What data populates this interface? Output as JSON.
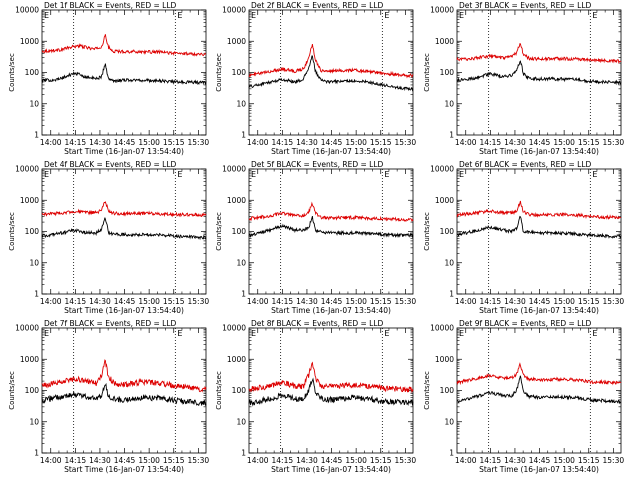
{
  "chart_data": [
    {
      "type": "line",
      "title": "Det 1f BLACK = Events, RED = LLD",
      "xlabel": "Start Time (16-Jan-07 13:54:40)",
      "ylabel": "Counts/sec",
      "x_unit": "minutes from 13:54:40",
      "xlim": [
        0,
        100
      ],
      "ylim": [
        1,
        10000
      ],
      "yscale": "log",
      "xtick_labels": [
        "14:00",
        "14:15",
        "14:30",
        "14:45",
        "15:00",
        "15:15",
        "15:30"
      ],
      "ytick_labels": [
        "1",
        "10",
        "100",
        "1000",
        "10000"
      ],
      "vlines_minutes": [
        19.3,
        81.3
      ],
      "markers": [
        "E",
        "E"
      ],
      "series": [
        {
          "color": "#dd0000",
          "x": [
            0,
            10,
            22,
            32,
            36.3,
            38.6,
            40.5,
            43,
            50,
            62,
            72,
            82,
            96
          ],
          "y": [
            480,
            520,
            720,
            560,
            650,
            1550,
            640,
            480,
            470,
            460,
            450,
            410,
            390
          ]
        },
        {
          "color": "#000000",
          "x": [
            0,
            10,
            20,
            27,
            33,
            36.3,
            38.6,
            40.5,
            44,
            50,
            62,
            72,
            82,
            96
          ],
          "y": [
            55,
            60,
            95,
            72,
            62,
            75,
            190,
            60,
            55,
            58,
            56,
            54,
            50,
            48
          ]
        }
      ]
    },
    {
      "type": "line",
      "title": "Det 2f BLACK = Events, RED = LLD",
      "xlabel": "Start Time (16-Jan-07 13:54:40)",
      "ylabel": "Counts/sec",
      "x_unit": "minutes from 13:54:40",
      "xlim": [
        0,
        100
      ],
      "ylim": [
        1,
        10000
      ],
      "yscale": "log",
      "xtick_labels": [
        "14:00",
        "14:15",
        "14:30",
        "14:45",
        "15:00",
        "15:15",
        "15:30"
      ],
      "ytick_labels": [
        "1",
        "10",
        "100",
        "1000",
        "10000"
      ],
      "vlines_minutes": [
        19.3,
        81.3
      ],
      "markers": [
        "E",
        "E"
      ],
      "series": [
        {
          "color": "#dd0000",
          "x": [
            0,
            10,
            20,
            28,
            33,
            36.3,
            38.6,
            40.5,
            44,
            50,
            62,
            72,
            82,
            96
          ],
          "y": [
            80,
            100,
            130,
            110,
            130,
            280,
            800,
            260,
            115,
            110,
            120,
            110,
            95,
            80
          ]
        },
        {
          "color": "#000000",
          "x": [
            0,
            10,
            20,
            28,
            33,
            36.3,
            38.6,
            40.5,
            44,
            50,
            62,
            72,
            82,
            96
          ],
          "y": [
            35,
            45,
            60,
            50,
            60,
            130,
            350,
            110,
            55,
            50,
            55,
            50,
            40,
            30
          ]
        }
      ]
    },
    {
      "type": "line",
      "title": "Det 3f BLACK = Events, RED = LLD",
      "xlabel": "Start Time (16-Jan-07 13:54:40)",
      "ylabel": "Counts/sec",
      "x_unit": "minutes from 13:54:40",
      "xlim": [
        0,
        100
      ],
      "ylim": [
        1,
        10000
      ],
      "yscale": "log",
      "xtick_labels": [
        "14:00",
        "14:15",
        "14:30",
        "14:45",
        "15:00",
        "15:15",
        "15:30"
      ],
      "ytick_labels": [
        "1",
        "10",
        "100",
        "1000",
        "10000"
      ],
      "vlines_minutes": [
        19.3,
        81.3
      ],
      "markers": [
        "E",
        "E"
      ],
      "series": [
        {
          "color": "#dd0000",
          "x": [
            0,
            10,
            20,
            28,
            33,
            36.3,
            38.6,
            40.5,
            44,
            50,
            62,
            72,
            82,
            96
          ],
          "y": [
            260,
            280,
            340,
            290,
            310,
            430,
            850,
            380,
            280,
            270,
            280,
            270,
            250,
            230
          ]
        },
        {
          "color": "#000000",
          "x": [
            0,
            10,
            20,
            28,
            33,
            36.3,
            38.6,
            40.5,
            44,
            50,
            62,
            72,
            82,
            96
          ],
          "y": [
            55,
            65,
            90,
            75,
            80,
            110,
            250,
            90,
            65,
            62,
            62,
            60,
            52,
            48
          ]
        }
      ]
    },
    {
      "type": "line",
      "title": "Det 4f BLACK = Events, RED = LLD",
      "xlabel": "Start Time (16-Jan-07 13:54:40)",
      "ylabel": "Counts/sec",
      "x_unit": "minutes from 13:54:40",
      "xlim": [
        0,
        100
      ],
      "ylim": [
        1,
        10000
      ],
      "yscale": "log",
      "xtick_labels": [
        "14:00",
        "14:15",
        "14:30",
        "14:45",
        "15:00",
        "15:15",
        "15:30"
      ],
      "ytick_labels": [
        "1",
        "10",
        "100",
        "1000",
        "10000"
      ],
      "vlines_minutes": [
        19.3,
        81.3
      ],
      "markers": [
        "E",
        "E"
      ],
      "series": [
        {
          "color": "#dd0000",
          "x": [
            0,
            10,
            20,
            28,
            33,
            36.3,
            38.6,
            40.5,
            44,
            50,
            62,
            72,
            82,
            96
          ],
          "y": [
            360,
            380,
            440,
            400,
            400,
            480,
            950,
            450,
            380,
            370,
            380,
            370,
            350,
            340
          ]
        },
        {
          "color": "#000000",
          "x": [
            0,
            10,
            20,
            28,
            33,
            36.3,
            38.6,
            40.5,
            44,
            50,
            62,
            72,
            82,
            96
          ],
          "y": [
            70,
            85,
            110,
            90,
            90,
            115,
            280,
            95,
            80,
            80,
            80,
            78,
            70,
            65
          ]
        }
      ]
    },
    {
      "type": "line",
      "title": "Det 5f BLACK = Events, RED = LLD",
      "xlabel": "Start Time (16-Jan-07 13:54:40)",
      "ylabel": "Counts/sec",
      "x_unit": "minutes from 13:54:40",
      "xlim": [
        0,
        100
      ],
      "ylim": [
        1,
        10000
      ],
      "yscale": "log",
      "xtick_labels": [
        "14:00",
        "14:15",
        "14:30",
        "14:45",
        "15:00",
        "15:15",
        "15:30"
      ],
      "ytick_labels": [
        "1",
        "10",
        "100",
        "1000",
        "10000"
      ],
      "vlines_minutes": [
        19.3,
        81.3
      ],
      "markers": [
        "E",
        "E"
      ],
      "series": [
        {
          "color": "#dd0000",
          "x": [
            0,
            10,
            20,
            28,
            33,
            36.3,
            38.6,
            40.5,
            44,
            50,
            62,
            72,
            82,
            96
          ],
          "y": [
            260,
            300,
            380,
            320,
            320,
            400,
            800,
            380,
            280,
            270,
            280,
            270,
            250,
            240
          ]
        },
        {
          "color": "#000000",
          "x": [
            0,
            10,
            20,
            28,
            33,
            36.3,
            38.6,
            40.5,
            44,
            50,
            62,
            72,
            82,
            96
          ],
          "y": [
            75,
            100,
            150,
            110,
            110,
            130,
            300,
            110,
            95,
            90,
            90,
            88,
            80,
            75
          ]
        }
      ]
    },
    {
      "type": "line",
      "title": "Det 6f BLACK = Events, RED = LLD",
      "xlabel": "Start Time (16-Jan-07 13:54:40)",
      "ylabel": "Counts/sec",
      "x_unit": "minutes from 13:54:40",
      "xlim": [
        0,
        100
      ],
      "ylim": [
        1,
        10000
      ],
      "yscale": "log",
      "xtick_labels": [
        "14:00",
        "14:15",
        "14:30",
        "14:45",
        "15:00",
        "15:15",
        "15:30"
      ],
      "ytick_labels": [
        "1",
        "10",
        "100",
        "1000",
        "10000"
      ],
      "vlines_minutes": [
        19.3,
        81.3
      ],
      "markers": [
        "E",
        "E"
      ],
      "series": [
        {
          "color": "#dd0000",
          "x": [
            0,
            10,
            20,
            28,
            33,
            36.3,
            38.6,
            40.5,
            44,
            50,
            62,
            72,
            82,
            96
          ],
          "y": [
            340,
            380,
            450,
            400,
            390,
            450,
            900,
            420,
            350,
            340,
            350,
            340,
            300,
            280
          ]
        },
        {
          "color": "#000000",
          "x": [
            0,
            10,
            20,
            28,
            33,
            36.3,
            38.6,
            40.5,
            44,
            50,
            62,
            72,
            82,
            96
          ],
          "y": [
            80,
            100,
            140,
            110,
            100,
            120,
            300,
            100,
            95,
            90,
            90,
            85,
            75,
            70
          ]
        }
      ]
    },
    {
      "type": "line",
      "title": "Det 7f BLACK = Events, RED = LLD",
      "xlabel": "Start Time (16-Jan-07 13:54:40)",
      "ylabel": "Counts/sec",
      "x_unit": "minutes from 13:54:40",
      "xlim": [
        0,
        100
      ],
      "ylim": [
        1,
        10000
      ],
      "yscale": "log",
      "xtick_labels": [
        "14:00",
        "14:15",
        "14:30",
        "14:45",
        "15:00",
        "15:15",
        "15:30"
      ],
      "ytick_labels": [
        "1",
        "10",
        "100",
        "1000",
        "10000"
      ],
      "vlines_minutes": [
        19.3,
        81.3
      ],
      "markers": [
        "E",
        "E"
      ],
      "series": [
        {
          "color": "#dd0000",
          "x": [
            0,
            10,
            20,
            28,
            33,
            36.3,
            38.6,
            40.5,
            44,
            50,
            62,
            72,
            82,
            96
          ],
          "y": [
            140,
            180,
            240,
            190,
            170,
            300,
            900,
            280,
            170,
            150,
            190,
            170,
            140,
            110
          ]
        },
        {
          "color": "#000000",
          "x": [
            0,
            10,
            20,
            28,
            33,
            36.3,
            38.6,
            40.5,
            44,
            50,
            62,
            72,
            82,
            96
          ],
          "y": [
            50,
            60,
            75,
            60,
            55,
            70,
            160,
            65,
            55,
            48,
            60,
            55,
            48,
            40
          ]
        }
      ]
    },
    {
      "type": "line",
      "title": "Det 8f BLACK = Events, RED = LLD",
      "xlabel": "Start Time (16-Jan-07 13:54:40)",
      "ylabel": "Counts/sec",
      "x_unit": "minutes from 13:54:40",
      "xlim": [
        0,
        100
      ],
      "ylim": [
        1,
        10000
      ],
      "yscale": "log",
      "xtick_labels": [
        "14:00",
        "14:15",
        "14:30",
        "14:45",
        "15:00",
        "15:15",
        "15:30"
      ],
      "ytick_labels": [
        "1",
        "10",
        "100",
        "1000",
        "10000"
      ],
      "vlines_minutes": [
        19.3,
        81.3
      ],
      "markers": [
        "E",
        "E"
      ],
      "series": [
        {
          "color": "#dd0000",
          "x": [
            0,
            10,
            20,
            28,
            33,
            36.3,
            38.6,
            40.5,
            44,
            50,
            62,
            72,
            82,
            96
          ],
          "y": [
            110,
            130,
            180,
            140,
            130,
            300,
            850,
            250,
            140,
            130,
            150,
            140,
            120,
            105
          ]
        },
        {
          "color": "#000000",
          "x": [
            0,
            10,
            20,
            28,
            33,
            36.3,
            38.6,
            40.5,
            44,
            50,
            62,
            72,
            82,
            96
          ],
          "y": [
            40,
            50,
            70,
            55,
            50,
            100,
            250,
            80,
            55,
            50,
            60,
            55,
            45,
            40
          ]
        }
      ]
    },
    {
      "type": "line",
      "title": "Det 9f BLACK = Events, RED = LLD",
      "xlabel": "Start Time (16-Jan-07 13:54:40)",
      "ylabel": "Counts/sec",
      "x_unit": "minutes from 13:54:40",
      "xlim": [
        0,
        100
      ],
      "ylim": [
        1,
        10000
      ],
      "yscale": "log",
      "xtick_labels": [
        "14:00",
        "14:15",
        "14:30",
        "14:45",
        "15:00",
        "15:15",
        "15:30"
      ],
      "ytick_labels": [
        "1",
        "10",
        "100",
        "1000",
        "10000"
      ],
      "vlines_minutes": [
        19.3,
        81.3
      ],
      "markers": [
        "E",
        "E"
      ],
      "series": [
        {
          "color": "#dd0000",
          "x": [
            0,
            10,
            20,
            28,
            33,
            36.3,
            38.6,
            40.5,
            44,
            50,
            62,
            72,
            82,
            96
          ],
          "y": [
            180,
            230,
            300,
            250,
            250,
            330,
            700,
            300,
            230,
            220,
            230,
            220,
            190,
            180
          ]
        },
        {
          "color": "#000000",
          "x": [
            0,
            10,
            20,
            28,
            33,
            36.3,
            38.6,
            40.5,
            44,
            50,
            62,
            72,
            82,
            96
          ],
          "y": [
            45,
            60,
            85,
            70,
            65,
            100,
            280,
            90,
            65,
            60,
            62,
            60,
            50,
            45
          ]
        }
      ]
    }
  ]
}
